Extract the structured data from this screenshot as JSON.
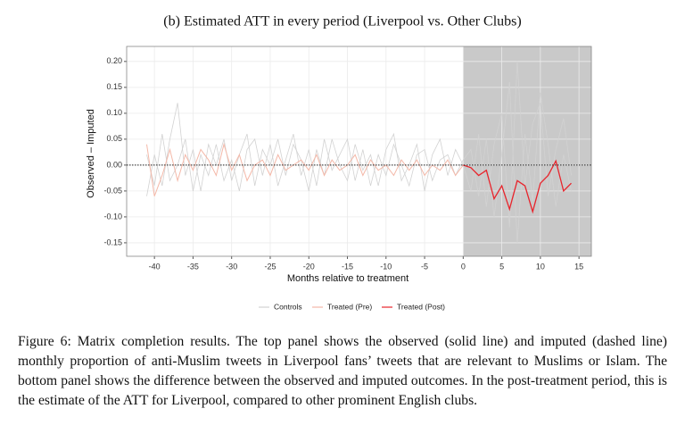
{
  "chart_data": {
    "type": "line",
    "title": "(b) Estimated ATT in every period (Liverpool vs. Other Clubs)",
    "x_label": "Months relative to treatment",
    "y_label": "Observed – Imputed",
    "x": [
      -41,
      -40,
      -39,
      -38,
      -37,
      -36,
      -35,
      -34,
      -33,
      -32,
      -31,
      -30,
      -29,
      -28,
      -27,
      -26,
      -25,
      -24,
      -23,
      -22,
      -21,
      -20,
      -19,
      -18,
      -17,
      -16,
      -15,
      -14,
      -13,
      -12,
      -11,
      -10,
      -9,
      -8,
      -7,
      -6,
      -5,
      -4,
      -3,
      -2,
      -1,
      0,
      1,
      2,
      3,
      4,
      5,
      6,
      7,
      8,
      9,
      10,
      11,
      12,
      13,
      14
    ],
    "series": [
      {
        "name": "Controls",
        "color": "#d2d2d2",
        "lines": [
          [
            -0.06,
            0.02,
            -0.04,
            0.05,
            0.12,
            -0.02,
            0.03,
            -0.05,
            0.04,
            0.0,
            0.05,
            -0.03,
            0.02,
            0.06,
            -0.04,
            0.03,
            0.0,
            0.05,
            -0.02,
            0.04,
            0.01,
            -0.05,
            0.03,
            -0.02,
            0.05,
            0.0,
            -0.03,
            0.04,
            -0.01,
            0.02,
            -0.04,
            0.03,
            0.06,
            -0.03,
            0.0,
            0.04,
            -0.05,
            0.02,
            0.05,
            -0.02,
            0.03,
            0.0,
            -0.05,
            0.06,
            -0.08,
            0.04,
            0.1,
            -0.12,
            0.2,
            -0.04,
            0.08,
            0.12,
            -0.06,
            0.03,
            0.09,
            -0.02
          ],
          [
            0.02,
            -0.04,
            0.06,
            -0.03,
            0.0,
            0.05,
            -0.05,
            0.02,
            -0.02,
            0.04,
            -0.03,
            0.01,
            -0.05,
            0.03,
            0.05,
            -0.02,
            0.04,
            -0.04,
            0.01,
            0.06,
            -0.02,
            0.03,
            -0.04,
            0.05,
            -0.01,
            0.02,
            0.05,
            -0.03,
            0.03,
            -0.04,
            0.02,
            -0.02,
            0.04,
            0.0,
            -0.04,
            0.02,
            0.03,
            -0.03,
            0.01,
            0.02,
            -0.02,
            0.01,
            0.03,
            -0.06,
            0.05,
            -0.1,
            0.02,
            0.16,
            -0.15,
            0.06,
            -0.07,
            0.14,
            0.04,
            -0.08,
            0.02,
            -0.05
          ]
        ]
      },
      {
        "name": "Treated (Pre)",
        "color": "#f4b8a8",
        "values": [
          0.04,
          -0.06,
          -0.02,
          0.03,
          -0.03,
          0.02,
          -0.01,
          0.03,
          0.01,
          -0.02,
          0.04,
          -0.01,
          0.02,
          -0.03,
          0.0,
          0.01,
          -0.02,
          0.02,
          -0.01,
          0.0,
          0.01,
          -0.01,
          0.02,
          -0.02,
          0.01,
          -0.01,
          0.0,
          0.02,
          -0.02,
          0.01,
          -0.01,
          0.0,
          -0.02,
          0.01,
          -0.01,
          0.01,
          -0.02,
          0.0,
          -0.01,
          0.01,
          -0.02,
          0.0,
          null,
          null,
          null,
          null,
          null,
          null,
          null,
          null,
          null,
          null,
          null,
          null,
          null,
          null
        ]
      },
      {
        "name": "Treated (Post)",
        "color": "#e8242c",
        "values": [
          null,
          null,
          null,
          null,
          null,
          null,
          null,
          null,
          null,
          null,
          null,
          null,
          null,
          null,
          null,
          null,
          null,
          null,
          null,
          null,
          null,
          null,
          null,
          null,
          null,
          null,
          null,
          null,
          null,
          null,
          null,
          null,
          null,
          null,
          null,
          null,
          null,
          null,
          null,
          null,
          null,
          0.0,
          -0.005,
          -0.02,
          -0.01,
          -0.065,
          -0.04,
          -0.085,
          -0.03,
          -0.04,
          -0.09,
          -0.035,
          -0.02,
          0.008,
          -0.05,
          -0.035
        ]
      }
    ],
    "xlim": [
      -43.6,
      16.6
    ],
    "ylim": [
      -0.176,
      0.229
    ],
    "xticks": [
      -40,
      -35,
      -30,
      -25,
      -20,
      -15,
      -10,
      -5,
      0,
      5,
      10,
      15
    ],
    "yticks": [
      -0.15,
      {
        "value": -0.1,
        "label": "-0.10"
      },
      -0.05,
      {
        "value": 0,
        "label": "0.00"
      },
      0.05,
      {
        "value": 0.1,
        "label": "0.10"
      },
      0.15,
      {
        "value": 0.2,
        "label": "0.20"
      }
    ],
    "grid": true,
    "reference_line": 0,
    "shade_from": 0,
    "shade_color": "#c9c9c9",
    "legend": "bottom"
  },
  "caption": "Figure 6: Matrix completion results. The top panel shows the observed (solid line) and imputed (dashed line) monthly proportion of anti-Muslim tweets in Liverpool fans’ tweets that are relevant to Muslims or Islam. The bottom panel shows the difference between the observed and imputed outcomes. In the post-treatment period, this is the estimate of the ATT for Liverpool, compared to other prominent English clubs."
}
